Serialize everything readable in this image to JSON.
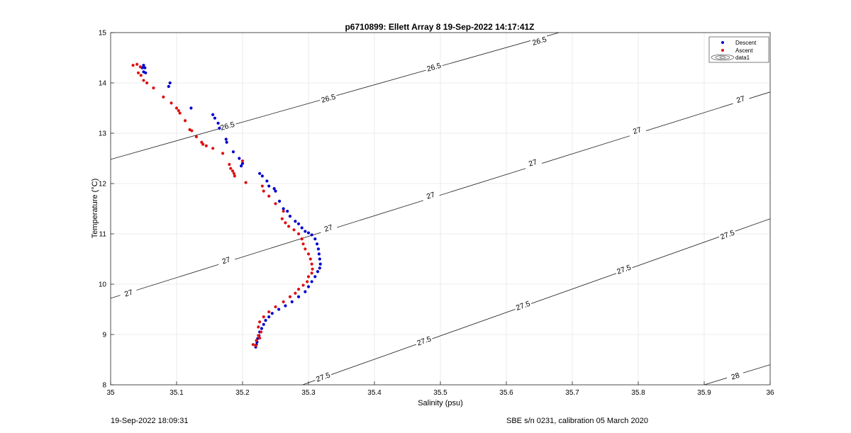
{
  "chart_data": {
    "type": "scatter",
    "title": "p6710899: Ellett Array 8 19-Sep-2022 14:17:41Z",
    "xlabel": "Salinity (psu)",
    "ylabel": "Temperature (°C)",
    "xlim": [
      35,
      36
    ],
    "ylim": [
      8,
      15
    ],
    "xticks": [
      "35",
      "35.1",
      "35.2",
      "35.3",
      "35.4",
      "35.5",
      "35.6",
      "35.7",
      "35.8",
      "35.9",
      "36"
    ],
    "yticks": [
      "8",
      "9",
      "10",
      "11",
      "12",
      "13",
      "14",
      "15"
    ],
    "grid": true,
    "legend_position": "top-right",
    "legend": [
      "Descent",
      "Ascent",
      "data1"
    ],
    "series": [
      {
        "name": "Descent",
        "color": "#0000cc",
        "points": [
          [
            35.05,
            14.35
          ],
          [
            35.052,
            14.3
          ],
          [
            35.05,
            14.22
          ],
          [
            35.053,
            14.2
          ],
          [
            35.048,
            14.3
          ],
          [
            35.09,
            14.0
          ],
          [
            35.088,
            13.93
          ],
          [
            35.122,
            13.5
          ],
          [
            35.155,
            13.37
          ],
          [
            35.158,
            13.3
          ],
          [
            35.163,
            13.2
          ],
          [
            35.165,
            13.1
          ],
          [
            35.175,
            12.88
          ],
          [
            35.176,
            12.82
          ],
          [
            35.186,
            12.63
          ],
          [
            35.195,
            12.5
          ],
          [
            35.2,
            12.4
          ],
          [
            35.198,
            12.35
          ],
          [
            35.226,
            12.2
          ],
          [
            35.23,
            12.15
          ],
          [
            35.237,
            12.05
          ],
          [
            35.24,
            11.95
          ],
          [
            35.248,
            11.9
          ],
          [
            35.25,
            11.85
          ],
          [
            35.256,
            11.65
          ],
          [
            35.262,
            11.5
          ],
          [
            35.268,
            11.45
          ],
          [
            35.272,
            11.35
          ],
          [
            35.28,
            11.25
          ],
          [
            35.285,
            11.2
          ],
          [
            35.29,
            11.12
          ],
          [
            35.295,
            11.05
          ],
          [
            35.3,
            11.02
          ],
          [
            35.305,
            10.98
          ],
          [
            35.31,
            10.9
          ],
          [
            35.313,
            10.8
          ],
          [
            35.315,
            10.7
          ],
          [
            35.316,
            10.6
          ],
          [
            35.317,
            10.5
          ],
          [
            35.318,
            10.4
          ],
          [
            35.317,
            10.32
          ],
          [
            35.314,
            10.25
          ],
          [
            35.31,
            10.15
          ],
          [
            35.305,
            10.05
          ],
          [
            35.3,
            9.95
          ],
          [
            35.295,
            9.85
          ],
          [
            35.285,
            9.75
          ],
          [
            35.275,
            9.65
          ],
          [
            35.265,
            9.57
          ],
          [
            35.255,
            9.5
          ],
          [
            35.245,
            9.42
          ],
          [
            35.24,
            9.35
          ],
          [
            35.235,
            9.28
          ],
          [
            35.232,
            9.2
          ],
          [
            35.229,
            9.12
          ],
          [
            35.226,
            9.05
          ],
          [
            35.225,
            8.98
          ],
          [
            35.223,
            8.92
          ],
          [
            35.222,
            8.85
          ],
          [
            35.221,
            8.8
          ],
          [
            35.22,
            8.75
          ]
        ]
      },
      {
        "name": "Ascent",
        "color": "#dd1111",
        "points": [
          [
            35.034,
            14.35
          ],
          [
            35.04,
            14.37
          ],
          [
            35.045,
            14.32
          ],
          [
            35.042,
            14.2
          ],
          [
            35.046,
            14.15
          ],
          [
            35.05,
            14.05
          ],
          [
            35.055,
            14.0
          ],
          [
            35.065,
            13.9
          ],
          [
            35.08,
            13.72
          ],
          [
            35.092,
            13.6
          ],
          [
            35.1,
            13.5
          ],
          [
            35.103,
            13.45
          ],
          [
            35.105,
            13.4
          ],
          [
            35.113,
            13.25
          ],
          [
            35.12,
            13.07
          ],
          [
            35.123,
            13.05
          ],
          [
            35.13,
            12.93
          ],
          [
            35.138,
            12.82
          ],
          [
            35.14,
            12.78
          ],
          [
            35.145,
            12.75
          ],
          [
            35.155,
            12.7
          ],
          [
            35.17,
            12.6
          ],
          [
            35.18,
            12.38
          ],
          [
            35.182,
            12.3
          ],
          [
            35.185,
            12.25
          ],
          [
            35.187,
            12.2
          ],
          [
            35.188,
            12.15
          ],
          [
            35.2,
            12.45
          ],
          [
            35.205,
            12.02
          ],
          [
            35.23,
            11.95
          ],
          [
            35.232,
            11.85
          ],
          [
            35.24,
            11.75
          ],
          [
            35.25,
            11.6
          ],
          [
            35.262,
            11.45
          ],
          [
            35.26,
            11.3
          ],
          [
            35.265,
            11.22
          ],
          [
            35.27,
            11.15
          ],
          [
            35.278,
            11.08
          ],
          [
            35.285,
            11.0
          ],
          [
            35.29,
            10.9
          ],
          [
            35.292,
            10.8
          ],
          [
            35.295,
            10.7
          ],
          [
            35.3,
            10.6
          ],
          [
            35.303,
            10.5
          ],
          [
            35.305,
            10.4
          ],
          [
            35.306,
            10.3
          ],
          [
            35.305,
            10.22
          ],
          [
            35.3,
            10.15
          ],
          [
            35.298,
            10.05
          ],
          [
            35.292,
            9.98
          ],
          [
            35.285,
            9.9
          ],
          [
            35.28,
            9.82
          ],
          [
            35.272,
            9.75
          ],
          [
            35.262,
            9.65
          ],
          [
            35.25,
            9.55
          ],
          [
            35.24,
            9.45
          ],
          [
            35.232,
            9.35
          ],
          [
            35.226,
            9.25
          ],
          [
            35.224,
            9.15
          ],
          [
            35.228,
            9.05
          ],
          [
            35.224,
            8.98
          ],
          [
            35.226,
            8.93
          ],
          [
            35.221,
            8.88
          ],
          [
            35.216,
            8.8
          ],
          [
            35.22,
            8.78
          ]
        ]
      }
    ],
    "contours": [
      {
        "level": "26.5",
        "labels": [
          "26.5",
          "26.5",
          "26.5",
          "26.5"
        ]
      },
      {
        "level": "27",
        "labels": [
          "27",
          "27",
          "27",
          "27",
          "27",
          "27",
          "27"
        ]
      },
      {
        "level": "27.5",
        "labels": [
          "27.5",
          "27.5",
          "27.5",
          "27.5",
          "27.5"
        ]
      },
      {
        "level": "28",
        "labels": [
          "28"
        ]
      }
    ]
  },
  "footer": {
    "left": "19-Sep-2022 18:09:31",
    "right": "SBE s/n 0231, calibration 05 March 2020"
  }
}
